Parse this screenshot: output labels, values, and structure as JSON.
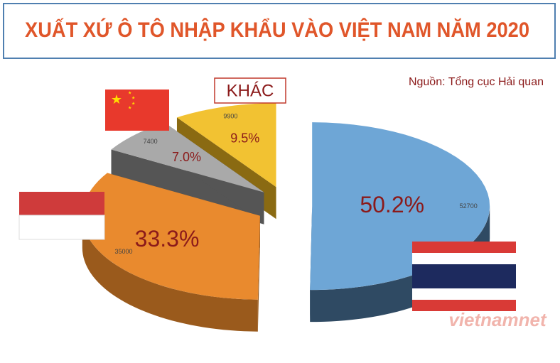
{
  "chart_data": {
    "type": "pie",
    "title": "XUẤT XỨ Ô TÔ NHẬP KHẨU VÀO VIỆT NAM NĂM 2020",
    "source": "Nguồn: Tổng cục Hải quan",
    "categories": [
      null,
      null,
      null,
      "KHÁC"
    ],
    "values": [
      52700,
      35000,
      7400,
      9900
    ],
    "percent_labels": [
      "50.2%",
      "33.3%",
      "7.0%",
      "9.5%"
    ],
    "colors": [
      "#6ea6d6",
      "#e98a2e",
      "#a9a9a9",
      "#f2c232"
    ],
    "side_colors": [
      "#2f4a63",
      "#9a5a1c",
      "#555555",
      "#8a6a12"
    ],
    "watermark": "vietnamnet"
  }
}
